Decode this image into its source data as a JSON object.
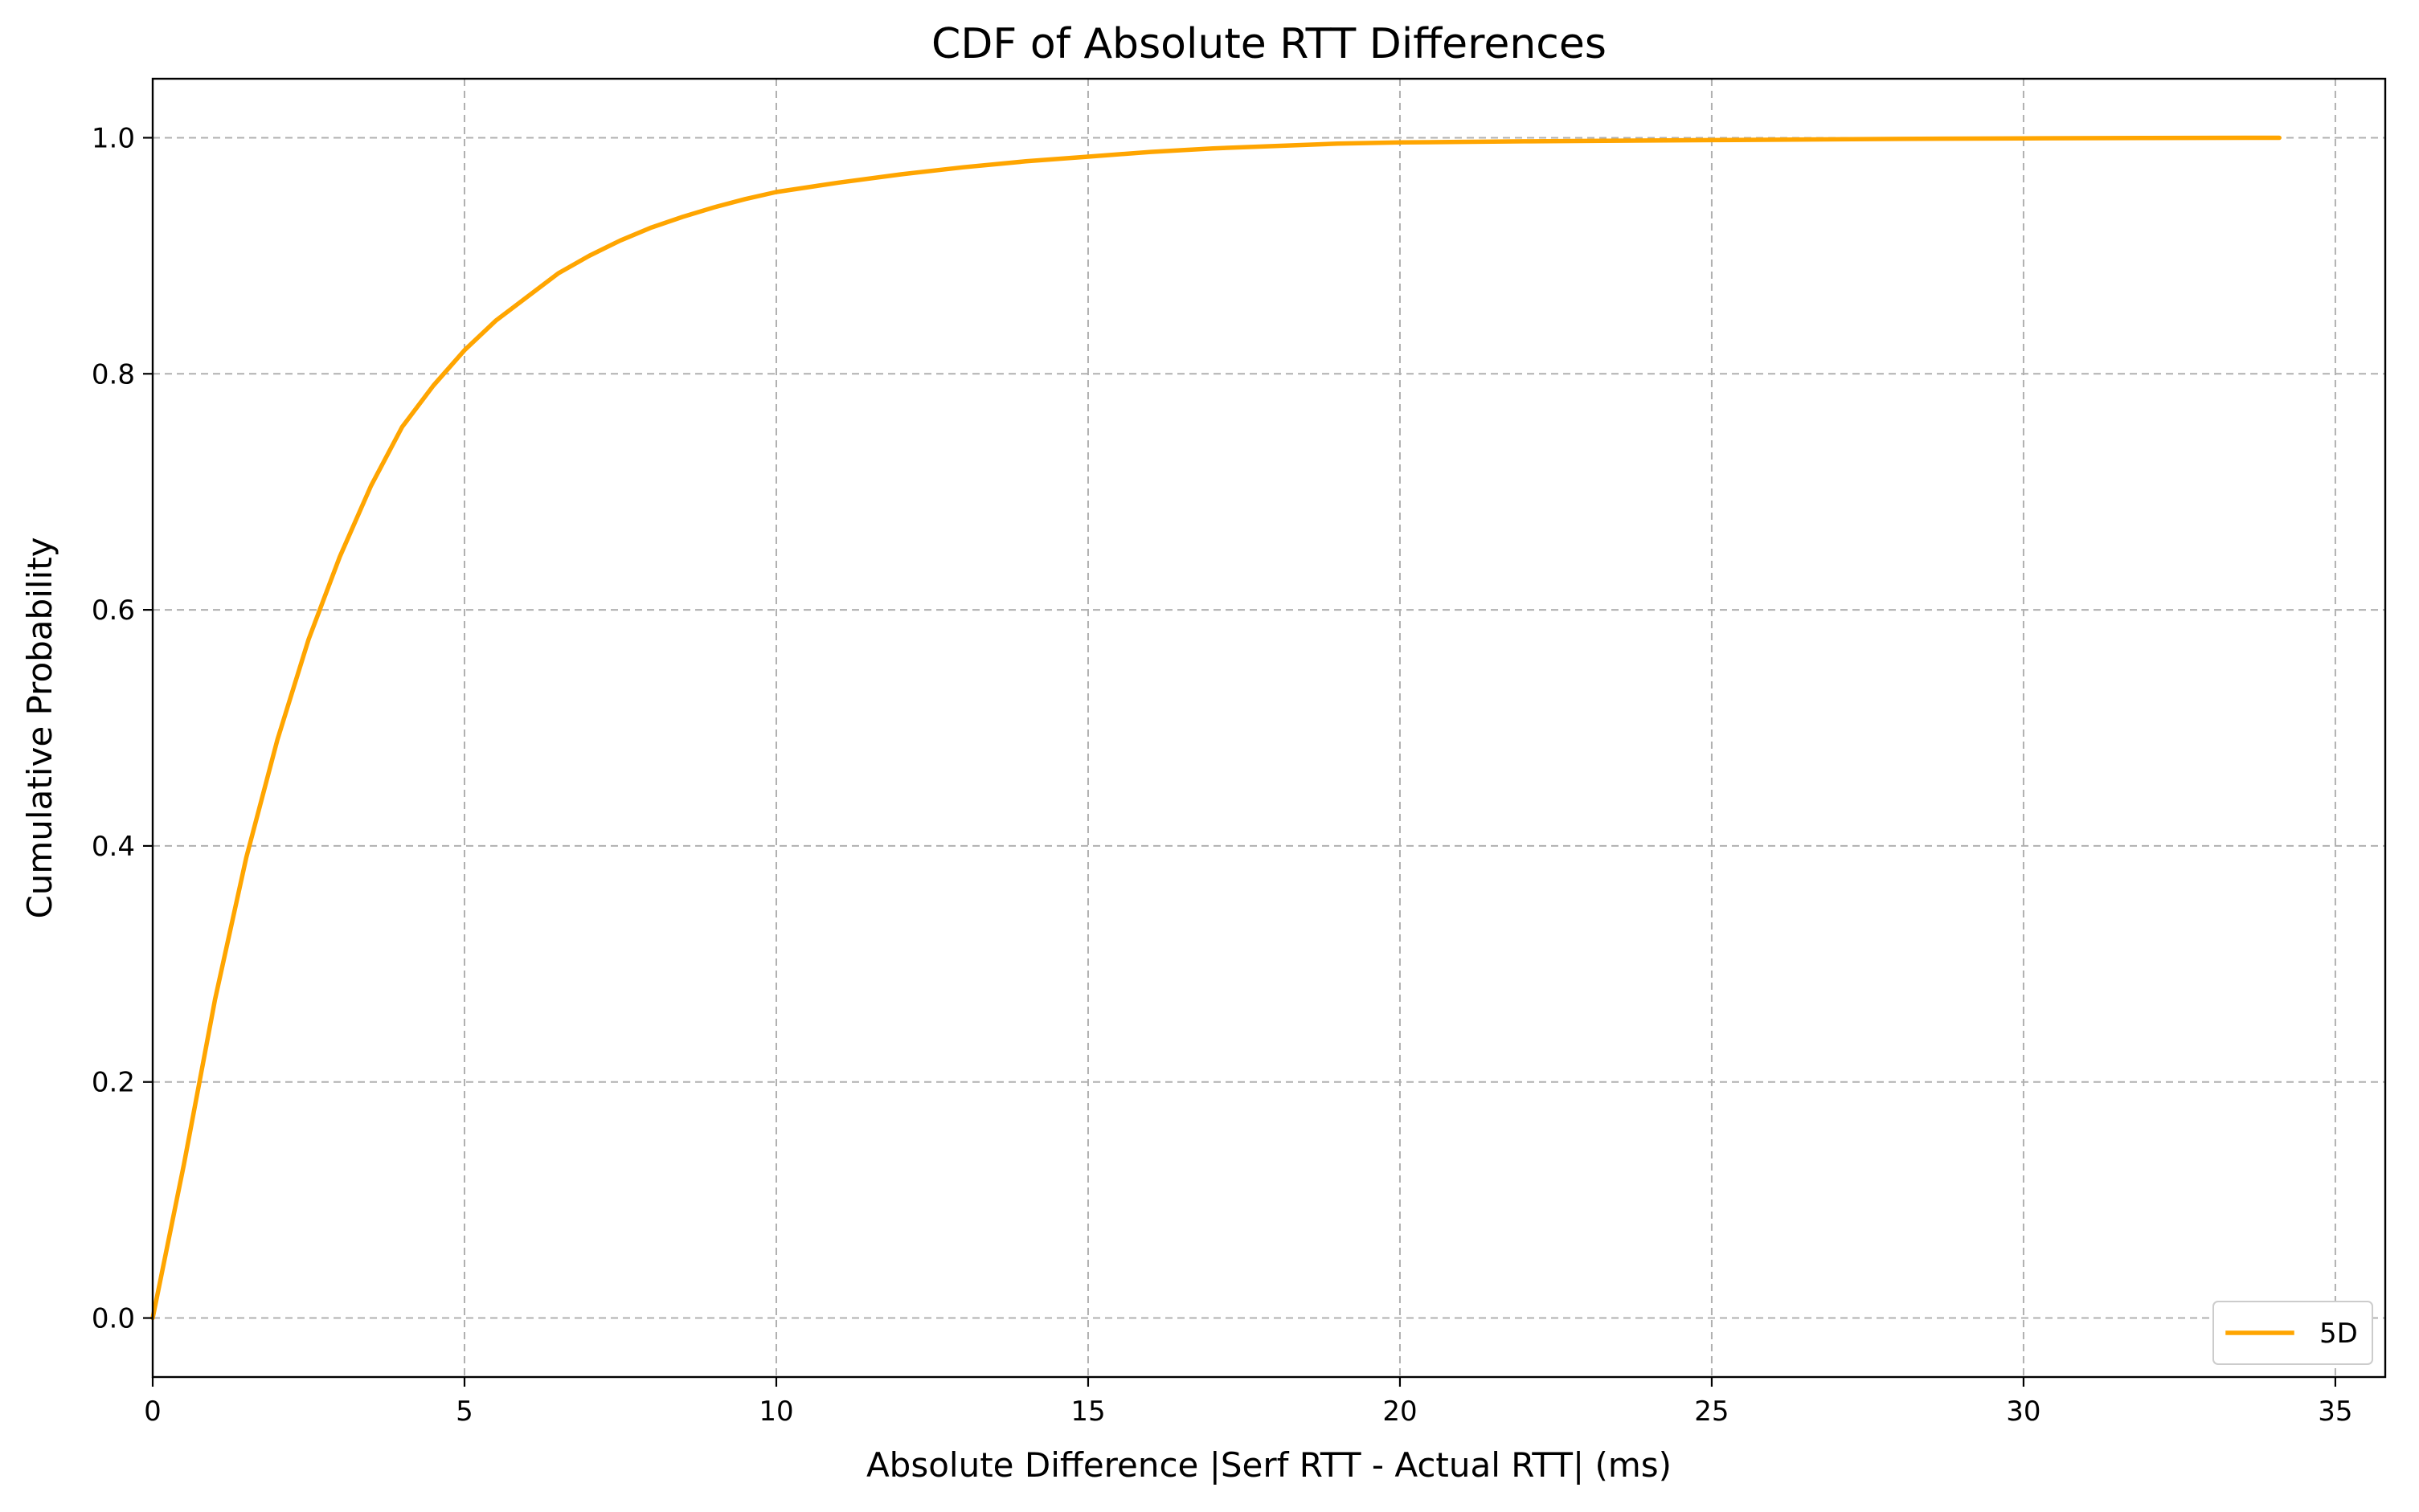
{
  "chart_data": {
    "type": "line",
    "title": "CDF of Absolute RTT Differences",
    "xlabel": "Absolute Difference |Serf RTT - Actual RTT| (ms)",
    "ylabel": "Cumulative Probability",
    "xlim": [
      0,
      35.8
    ],
    "ylim": [
      -0.05,
      1.05
    ],
    "xticks": [
      0,
      5,
      10,
      15,
      20,
      25,
      30,
      35
    ],
    "yticks": [
      0.0,
      0.2,
      0.4,
      0.6,
      0.8,
      1.0
    ],
    "xtick_labels": [
      "0",
      "5",
      "10",
      "15",
      "20",
      "25",
      "30",
      "35"
    ],
    "ytick_labels": [
      "0.0",
      "0.2",
      "0.4",
      "0.6",
      "0.8",
      "1.0"
    ],
    "grid": true,
    "legend_position": "lower right",
    "series": [
      {
        "name": "5D",
        "color": "#FFA500",
        "x": [
          0,
          0.5,
          1.0,
          1.5,
          2.0,
          2.5,
          3.0,
          3.5,
          4.0,
          4.5,
          5.0,
          5.5,
          6.0,
          6.5,
          7.0,
          7.5,
          8.0,
          8.5,
          9.0,
          9.5,
          10.0,
          11.0,
          12.0,
          13.0,
          14.0,
          15.0,
          16.0,
          17.0,
          18.0,
          19.0,
          20.0,
          22.0,
          25.0,
          28.0,
          30.0,
          32.0,
          34.1
        ],
        "y": [
          0.0,
          0.13,
          0.27,
          0.39,
          0.49,
          0.575,
          0.645,
          0.705,
          0.755,
          0.79,
          0.82,
          0.845,
          0.865,
          0.885,
          0.9,
          0.913,
          0.924,
          0.933,
          0.941,
          0.948,
          0.954,
          0.962,
          0.969,
          0.975,
          0.98,
          0.984,
          0.988,
          0.991,
          0.993,
          0.995,
          0.996,
          0.997,
          0.998,
          0.999,
          0.9995,
          0.9998,
          1.0
        ]
      }
    ]
  }
}
